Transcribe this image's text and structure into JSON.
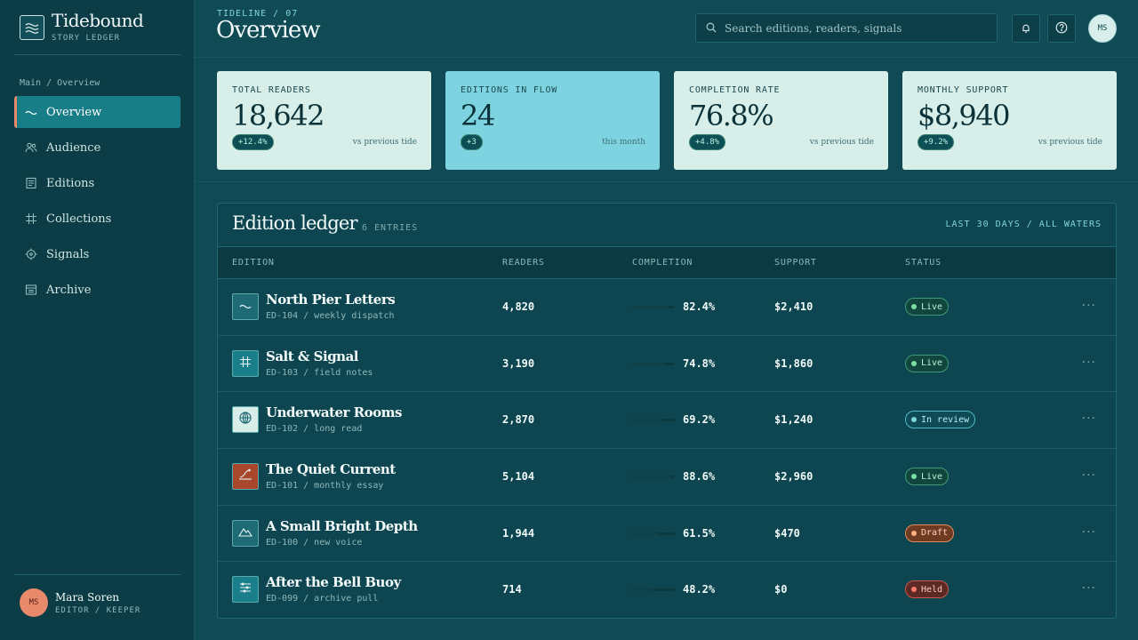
{
  "brand": {
    "title": "Tidebound",
    "subtitle": "STORY LEDGER"
  },
  "sidebar": {
    "crumb": "Main / Overview",
    "items": [
      {
        "label": "Overview",
        "icon": "wave-icon",
        "active": true
      },
      {
        "label": "Audience",
        "icon": "users-icon"
      },
      {
        "label": "Editions",
        "icon": "document-icon"
      },
      {
        "label": "Collections",
        "icon": "grid-icon"
      },
      {
        "label": "Signals",
        "icon": "target-icon"
      },
      {
        "label": "Archive",
        "icon": "archive-icon"
      }
    ]
  },
  "user": {
    "initials": "MS",
    "name": "Mara Soren",
    "role": "EDITOR / KEEPER"
  },
  "header": {
    "eyebrow": "TIDELINE / 07",
    "title": "Overview",
    "search_placeholder": "Search editions, readers, signals",
    "avatar_initials": "MS"
  },
  "stats": [
    {
      "label": "TOTAL READERS",
      "value": "18,642",
      "delta": "+12.4%",
      "note": "vs previous tide"
    },
    {
      "label": "EDITIONS IN FLOW",
      "value": "24",
      "delta": "+3",
      "note": "this month"
    },
    {
      "label": "COMPLETION RATE",
      "value": "76.8%",
      "delta": "+4.8%",
      "note": "vs previous tide"
    },
    {
      "label": "MONTHLY SUPPORT",
      "value": "$8,940",
      "delta": "+9.2%",
      "note": "vs previous tide"
    }
  ],
  "ledger": {
    "title": "Edition ledger",
    "count": "6 ENTRIES",
    "filter": "LAST 30 DAYS / ALL WATERS",
    "columns": {
      "edition": "EDITION",
      "readers": "READERS",
      "completion": "COMPLETION",
      "support": "SUPPORT",
      "status": "STATUS"
    },
    "rows": [
      {
        "name": "North Pier Letters",
        "meta": "ED-104 / weekly dispatch",
        "readers": "4,820",
        "completion": "82.4%",
        "completion_value": 0.824,
        "support": "$2,410",
        "status": "Live",
        "status_kind": "live",
        "thumb_icon": "wave-icon",
        "thumb_color": "#1f6b75"
      },
      {
        "name": "Salt & Signal",
        "meta": "ED-103 / field notes",
        "readers": "3,190",
        "completion": "74.8%",
        "completion_value": 0.748,
        "support": "$1,860",
        "status": "Live",
        "status_kind": "live",
        "thumb_icon": "grid-icon",
        "thumb_color": "#1a7f8b"
      },
      {
        "name": "Underwater Rooms",
        "meta": "ED-102 / long read",
        "readers": "2,870",
        "completion": "69.2%",
        "completion_value": 0.692,
        "support": "$1,240",
        "status": "In review",
        "status_kind": "review",
        "thumb_icon": "globe-icon",
        "thumb_color": "#d8eee9"
      },
      {
        "name": "The Quiet Current",
        "meta": "ED-101 / monthly essay",
        "readers": "5,104",
        "completion": "88.6%",
        "completion_value": 0.886,
        "support": "$2,960",
        "status": "Live",
        "status_kind": "live",
        "thumb_icon": "current-icon",
        "thumb_color": "#a9472d"
      },
      {
        "name": "A Small Bright Depth",
        "meta": "ED-100 / new voice",
        "readers": "1,944",
        "completion": "61.5%",
        "completion_value": 0.615,
        "support": "$470",
        "status": "Draft",
        "status_kind": "draft",
        "thumb_icon": "mountain-icon",
        "thumb_color": "#1f6b75"
      },
      {
        "name": "After the Bell Buoy",
        "meta": "ED-099 / archive pull",
        "readers": "714",
        "completion": "48.2%",
        "completion_value": 0.482,
        "support": "$0",
        "status": "Held",
        "status_kind": "held",
        "thumb_icon": "sliders-icon",
        "thumb_color": "#1a7f8b"
      }
    ]
  }
}
